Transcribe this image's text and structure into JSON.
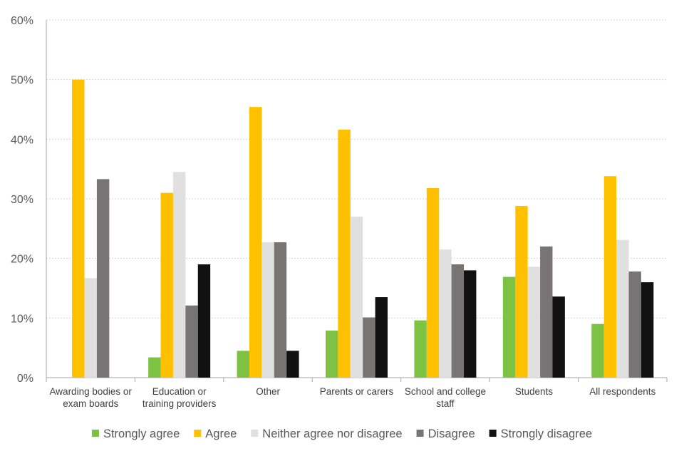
{
  "chart_data": {
    "type": "bar",
    "title": "",
    "xlabel": "",
    "ylabel": "",
    "ylim": [
      0,
      60
    ],
    "yticks": [
      "0%",
      "10%",
      "20%",
      "30%",
      "40%",
      "50%",
      "60%"
    ],
    "grid": true,
    "legend_position": "bottom",
    "categories": [
      [
        "Awarding bodies or",
        "exam boards"
      ],
      [
        "Education or",
        "training providers"
      ],
      [
        "Other"
      ],
      [
        "Parents or carers"
      ],
      [
        "School and college",
        "staff"
      ],
      [
        "Students"
      ],
      [
        "All respondents"
      ]
    ],
    "series": [
      {
        "name": "Strongly agree",
        "color": "#7dc242",
        "values": [
          0,
          3.4,
          4.5,
          7.9,
          9.6,
          16.9,
          9.0
        ]
      },
      {
        "name": "Agree",
        "color": "#ffc000",
        "values": [
          50.0,
          31.0,
          45.4,
          41.6,
          31.8,
          28.8,
          33.8
        ]
      },
      {
        "name": "Neither agree nor disagree",
        "color": "#e0e0e0",
        "values": [
          16.7,
          34.5,
          22.7,
          27.0,
          21.5,
          18.6,
          23.1
        ]
      },
      {
        "name": "Disagree",
        "color": "#787474",
        "values": [
          33.3,
          12.1,
          22.7,
          10.1,
          19.0,
          22.0,
          17.8
        ]
      },
      {
        "name": "Strongly disagree",
        "color": "#111111",
        "values": [
          0,
          19.0,
          4.5,
          13.5,
          18.0,
          13.6,
          16.0
        ]
      }
    ]
  }
}
